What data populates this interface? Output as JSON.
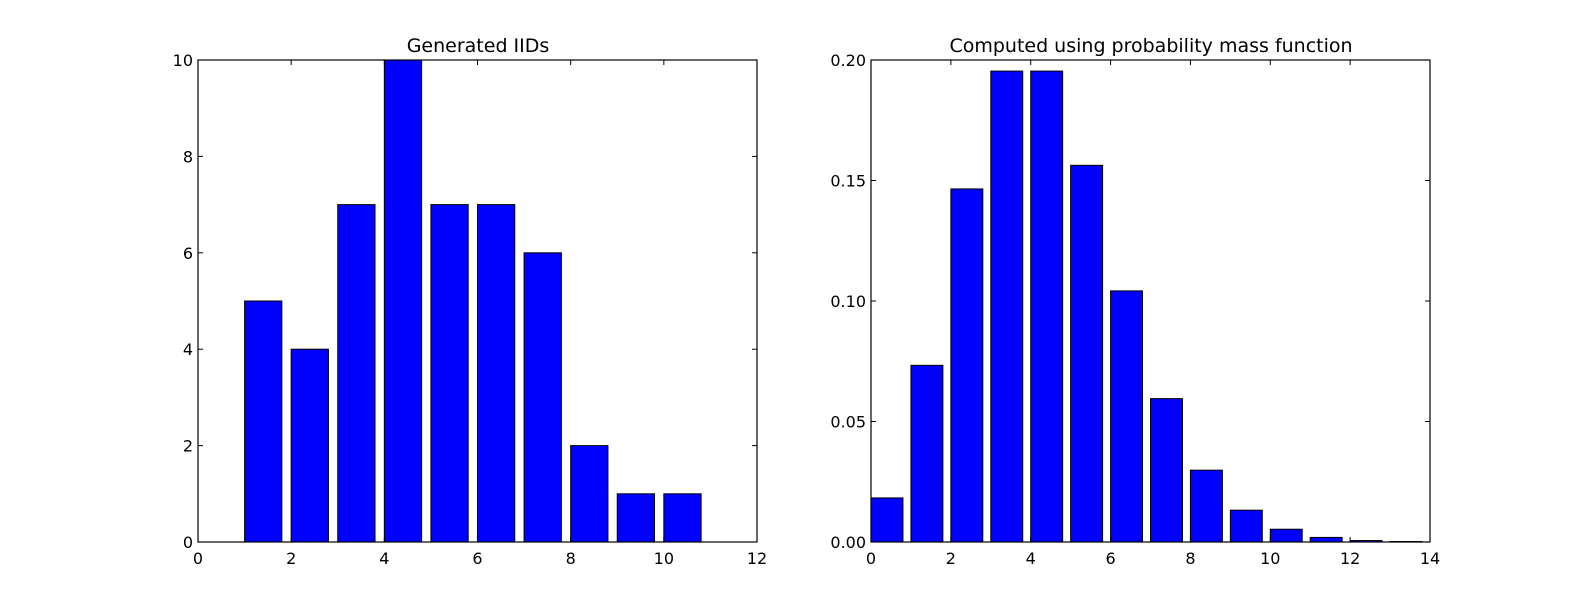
{
  "colors": {
    "bar_fill": "#0000ff",
    "bar_edge": "#000000",
    "axes": "#000000",
    "background": "#ffffff"
  },
  "chart_data": [
    {
      "type": "bar",
      "title": "Generated IIDs",
      "xlabel": "",
      "ylabel": "",
      "xlim": [
        0,
        12
      ],
      "ylim": [
        0,
        10
      ],
      "xticks": [
        0,
        2,
        4,
        6,
        8,
        10,
        12
      ],
      "yticks": [
        0,
        2,
        4,
        6,
        8,
        10
      ],
      "xtick_labels": [
        "0",
        "2",
        "4",
        "6",
        "8",
        "10",
        "12"
      ],
      "ytick_labels": [
        "0",
        "2",
        "4",
        "6",
        "8",
        "10"
      ],
      "bar_width": 0.8,
      "x": [
        1,
        2,
        3,
        4,
        5,
        6,
        7,
        8,
        9,
        10
      ],
      "values": [
        5,
        4,
        7,
        10,
        7,
        7,
        6,
        2,
        1,
        1
      ],
      "grid": false,
      "legend": false
    },
    {
      "type": "bar",
      "title": "Computed using probability mass function",
      "xlabel": "",
      "ylabel": "",
      "xlim": [
        0,
        14
      ],
      "ylim": [
        0,
        0.2
      ],
      "xticks": [
        0,
        2,
        4,
        6,
        8,
        10,
        12,
        14
      ],
      "yticks": [
        0,
        0.05,
        0.1,
        0.15,
        0.2
      ],
      "xtick_labels": [
        "0",
        "2",
        "4",
        "6",
        "8",
        "10",
        "12",
        "14"
      ],
      "ytick_labels": [
        "0.00",
        "0.05",
        "0.10",
        "0.15",
        "0.20"
      ],
      "bar_width": 0.8,
      "x": [
        0,
        1,
        2,
        3,
        4,
        5,
        6,
        7,
        8,
        9,
        10,
        11,
        12,
        13
      ],
      "values": [
        0.0183,
        0.0733,
        0.1465,
        0.1954,
        0.1954,
        0.1563,
        0.1042,
        0.0595,
        0.0298,
        0.0132,
        0.0053,
        0.0019,
        0.0006,
        0.0002
      ],
      "grid": false,
      "legend": false
    }
  ]
}
